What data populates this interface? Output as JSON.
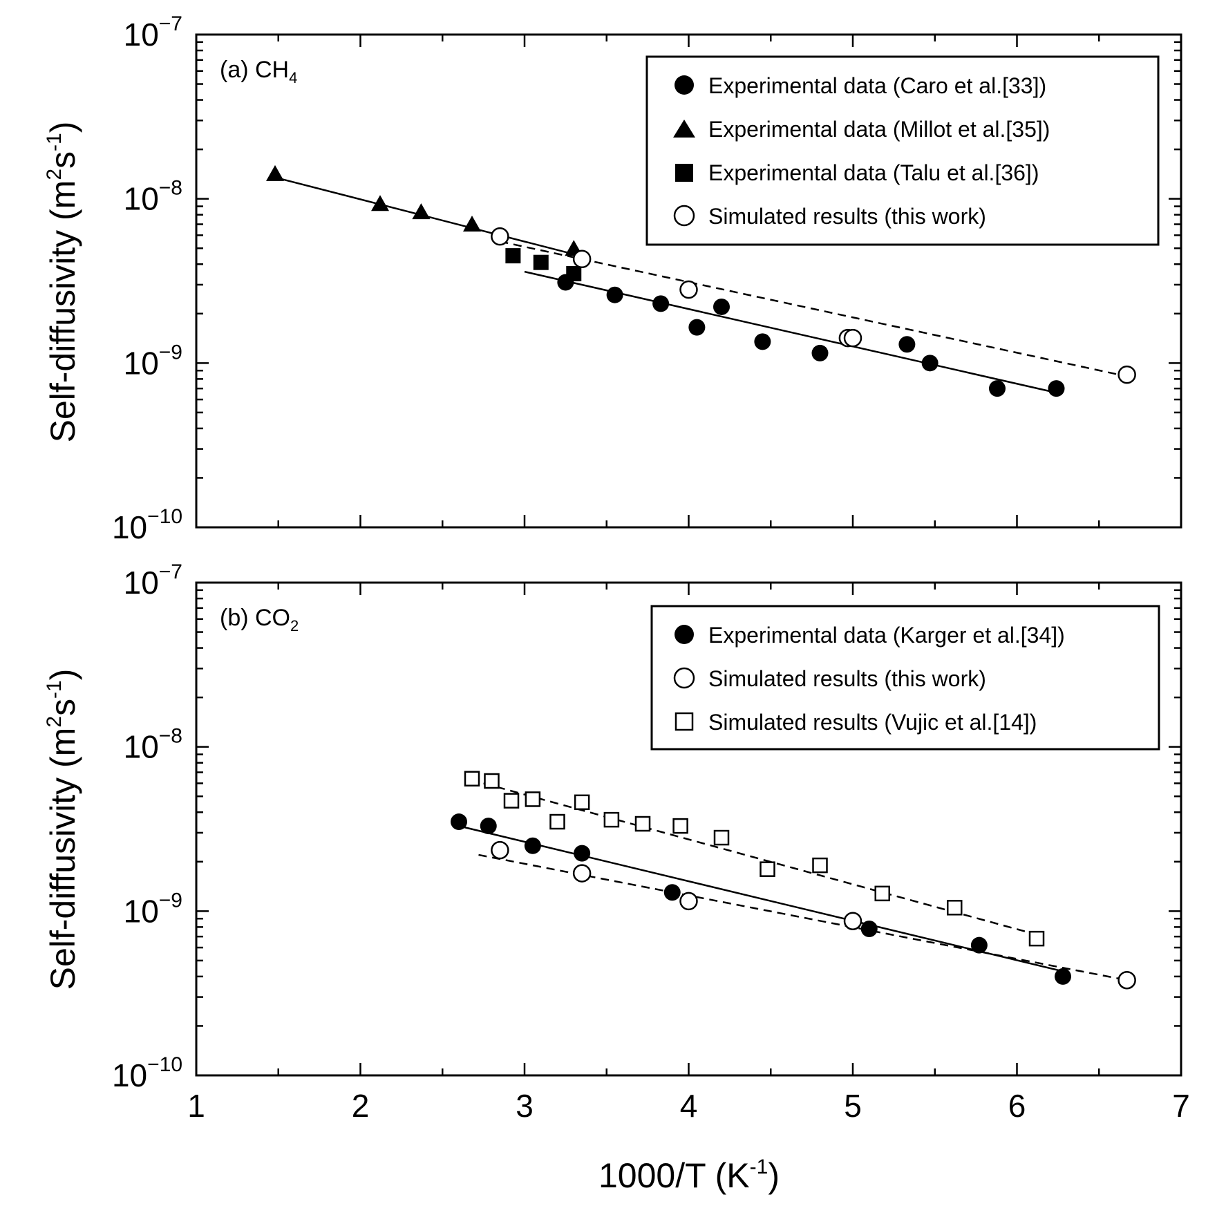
{
  "chart_data": [
    {
      "type": "scatter",
      "panel_label": "(a) CH",
      "panel_label_sub": "4",
      "xlim": [
        1,
        7
      ],
      "ylim": [
        1e-10,
        1e-07
      ],
      "yscale": "log",
      "ylabel": "Self-diffusivity  (m",
      "ylabel_sup1": "2",
      "ylabel_mid": "s",
      "ylabel_sup2": "-1",
      "ylabel_end": ")",
      "yticks": [
        {
          "base": "10",
          "exp": "-7"
        },
        {
          "base": "10",
          "exp": "-8"
        },
        {
          "base": "10",
          "exp": "-9"
        },
        {
          "base": "10",
          "exp": "-10"
        }
      ],
      "legend_position": "top-right",
      "series": [
        {
          "name": "Experimental data (Caro et al.[33])",
          "marker": "filled-circle",
          "points": [
            [
              3.25,
              3.1e-09
            ],
            [
              3.55,
              2.6e-09
            ],
            [
              3.83,
              2.3e-09
            ],
            [
              4.05,
              1.65e-09
            ],
            [
              4.2,
              2.2e-09
            ],
            [
              4.45,
              1.35e-09
            ],
            [
              4.8,
              1.15e-09
            ],
            [
              5.33,
              1.3e-09
            ],
            [
              5.47,
              1e-09
            ],
            [
              5.88,
              7e-10
            ],
            [
              6.24,
              7e-10
            ]
          ],
          "fit": {
            "style": "solid",
            "x": [
              3.0,
              6.24
            ],
            "y": [
              3.6e-09,
              6.6e-10
            ]
          }
        },
        {
          "name": "Experimental data (Millot et al.[35])",
          "marker": "filled-triangle",
          "points": [
            [
              1.48,
              1.4e-08
            ],
            [
              2.12,
              9.2e-09
            ],
            [
              2.37,
              8.2e-09
            ],
            [
              2.68,
              6.9e-09
            ],
            [
              3.3,
              4.9e-09
            ]
          ],
          "fit": {
            "style": "solid",
            "x": [
              1.48,
              3.3
            ],
            "y": [
              1.35e-08,
              4.6e-09
            ]
          }
        },
        {
          "name": "Experimental data (Talu et al.[36])",
          "marker": "filled-square",
          "points": [
            [
              2.93,
              4.5e-09
            ],
            [
              3.1,
              4.1e-09
            ],
            [
              3.3,
              3.5e-09
            ]
          ]
        },
        {
          "name": "Simulated results (this work)",
          "marker": "open-circle",
          "points": [
            [
              2.85,
              5.9e-09
            ],
            [
              3.35,
              4.3e-09
            ],
            [
              4.0,
              2.8e-09
            ],
            [
              4.97,
              1.42e-09
            ],
            [
              5.0,
              1.42e-09
            ],
            [
              6.67,
              8.5e-10
            ]
          ],
          "fit": {
            "style": "dashed",
            "x": [
              2.85,
              6.67
            ],
            "y": [
              5.5e-09,
              8.3e-10
            ]
          }
        }
      ]
    },
    {
      "type": "scatter",
      "panel_label": "(b) CO",
      "panel_label_sub": "2",
      "xlim": [
        1,
        7
      ],
      "ylim": [
        1e-10,
        1e-07
      ],
      "yscale": "log",
      "xlabel": "1000/T  (K",
      "xlabel_sup": "-1",
      "xlabel_end": ")",
      "xticks": [
        "1",
        "2",
        "3",
        "4",
        "5",
        "6",
        "7"
      ],
      "ylabel": "Self-diffusivity  (m",
      "ylabel_sup1": "2",
      "ylabel_mid": "s",
      "ylabel_sup2": "-1",
      "ylabel_end": ")",
      "yticks": [
        {
          "base": "10",
          "exp": "-7"
        },
        {
          "base": "10",
          "exp": "-8"
        },
        {
          "base": "10",
          "exp": "-9"
        },
        {
          "base": "10",
          "exp": "-10"
        }
      ],
      "legend_position": "top-right",
      "series": [
        {
          "name": "Experimental data (Karger et al.[34])",
          "marker": "filled-circle",
          "points": [
            [
              2.6,
              3.5e-09
            ],
            [
              2.78,
              3.3e-09
            ],
            [
              3.05,
              2.5e-09
            ],
            [
              3.35,
              2.25e-09
            ],
            [
              3.9,
              1.3e-09
            ],
            [
              5.1,
              7.8e-10
            ],
            [
              5.77,
              6.2e-10
            ],
            [
              6.28,
              4e-10
            ]
          ],
          "fit": {
            "style": "solid",
            "x": [
              2.6,
              6.28
            ],
            "y": [
              3.3e-09,
              4.3e-10
            ]
          }
        },
        {
          "name": "Simulated results (this work)",
          "marker": "open-circle",
          "points": [
            [
              2.85,
              2.35e-09
            ],
            [
              3.35,
              1.7e-09
            ],
            [
              4.0,
              1.15e-09
            ],
            [
              5.0,
              8.7e-10
            ],
            [
              6.67,
              3.8e-10
            ]
          ],
          "fit": {
            "style": "dashed",
            "x": [
              2.72,
              6.67
            ],
            "y": [
              2.2e-09,
              3.8e-10
            ]
          }
        },
        {
          "name": "Simulated results (Vujic et al.[14])",
          "marker": "open-square",
          "points": [
            [
              2.68,
              6.4e-09
            ],
            [
              2.8,
              6.2e-09
            ],
            [
              2.92,
              4.7e-09
            ],
            [
              3.05,
              4.8e-09
            ],
            [
              3.2,
              3.5e-09
            ],
            [
              3.35,
              4.6e-09
            ],
            [
              3.53,
              3.6e-09
            ],
            [
              3.72,
              3.4e-09
            ],
            [
              3.95,
              3.3e-09
            ],
            [
              4.2,
              2.8e-09
            ],
            [
              4.48,
              1.8e-09
            ],
            [
              4.8,
              1.9e-09
            ],
            [
              5.18,
              1.28e-09
            ],
            [
              5.62,
              1.05e-09
            ],
            [
              6.12,
              6.8e-10
            ]
          ],
          "fit": {
            "style": "dashed",
            "x": [
              2.75,
              6.12
            ],
            "y": [
              6e-09,
              7.2e-10
            ]
          }
        }
      ]
    }
  ]
}
